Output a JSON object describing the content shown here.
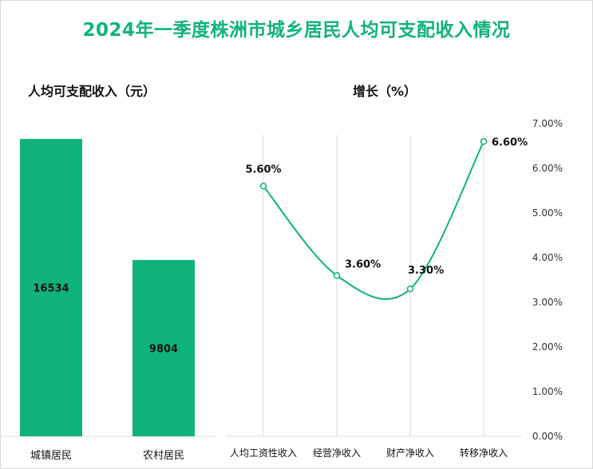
{
  "title": "2024年一季度株洲市城乡居民人均可支配收入情况",
  "colors": {
    "accent": "#10b27c",
    "title": "#10b27c",
    "text": "#111111",
    "axis": "#404040",
    "grid": "#d9d9d9"
  },
  "chart_data": [
    {
      "type": "bar",
      "title": "人均可支配收入（元）",
      "categories": [
        "城镇居民",
        "农村居民"
      ],
      "values": [
        16534,
        9804
      ],
      "ylim": [
        0,
        20000
      ],
      "data_labels": [
        "16534",
        "9804"
      ],
      "grid": false,
      "color": "#10b27c"
    },
    {
      "type": "line",
      "title": "增长（%）",
      "categories": [
        "人均工资性收入",
        "经营净收入",
        "财产净收入",
        "转移净收入"
      ],
      "values": [
        5.6,
        3.6,
        3.3,
        6.6
      ],
      "data_labels": [
        "5.60%",
        "3.60%",
        "3.30%",
        "6.60%"
      ],
      "ylim": [
        0,
        7
      ],
      "y_ticks": [
        "0.00%",
        "1.00%",
        "2.00%",
        "3.00%",
        "4.00%",
        "5.00%",
        "6.00%",
        "7.00%"
      ],
      "y_axis_position": "right",
      "smooth": true,
      "grid": "vertical",
      "color": "#10b27c"
    }
  ]
}
